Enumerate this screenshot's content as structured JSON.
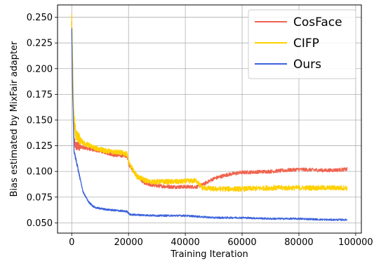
{
  "chart_data": {
    "type": "line",
    "title": "",
    "xlabel": "Training Iteration",
    "ylabel": "Bias estimated by MixFair adapter",
    "xlim": [
      -5000,
      102000
    ],
    "ylim": [
      0.04,
      0.262
    ],
    "xticks": [
      0,
      20000,
      40000,
      60000,
      80000,
      100000
    ],
    "xtick_labels": [
      "0",
      "20000",
      "40000",
      "60000",
      "80000",
      "100000"
    ],
    "yticks": [
      0.05,
      0.075,
      0.1,
      0.125,
      0.15,
      0.175,
      0.2,
      0.225,
      0.25
    ],
    "ytick_labels": [
      "0.050",
      "0.075",
      "0.100",
      "0.125",
      "0.150",
      "0.175",
      "0.200",
      "0.225",
      "0.250"
    ],
    "grid": true,
    "legend_position": "top-right",
    "draw_order": [
      "CosFace",
      "CIFP",
      "Ours"
    ],
    "series": [
      {
        "name": "CosFace",
        "color": "#f0624d",
        "noise": 0.0018,
        "points": [
          [
            0,
            0.245
          ],
          [
            300,
            0.2
          ],
          [
            800,
            0.13
          ],
          [
            1500,
            0.125
          ],
          [
            3000,
            0.124
          ],
          [
            6000,
            0.122
          ],
          [
            10000,
            0.12
          ],
          [
            15000,
            0.116
          ],
          [
            19500,
            0.115
          ],
          [
            20300,
            0.106
          ],
          [
            23000,
            0.095
          ],
          [
            26000,
            0.088
          ],
          [
            30000,
            0.086
          ],
          [
            35000,
            0.085
          ],
          [
            40000,
            0.085
          ],
          [
            44000,
            0.085
          ],
          [
            46000,
            0.087
          ],
          [
            50000,
            0.093
          ],
          [
            55000,
            0.097
          ],
          [
            60000,
            0.099
          ],
          [
            70000,
            0.1
          ],
          [
            80000,
            0.102
          ],
          [
            90000,
            0.101
          ],
          [
            97000,
            0.102
          ]
        ]
      },
      {
        "name": "CIFP",
        "color": "#ffd000",
        "noise": 0.0025,
        "points": [
          [
            0,
            0.252
          ],
          [
            300,
            0.21
          ],
          [
            700,
            0.155
          ],
          [
            1500,
            0.135
          ],
          [
            4000,
            0.128
          ],
          [
            8000,
            0.123
          ],
          [
            12000,
            0.12
          ],
          [
            16000,
            0.119
          ],
          [
            19500,
            0.117
          ],
          [
            20300,
            0.107
          ],
          [
            23000,
            0.095
          ],
          [
            27000,
            0.09
          ],
          [
            32000,
            0.09
          ],
          [
            38000,
            0.09
          ],
          [
            44000,
            0.091
          ],
          [
            46000,
            0.084
          ],
          [
            50000,
            0.083
          ],
          [
            60000,
            0.083
          ],
          [
            70000,
            0.084
          ],
          [
            80000,
            0.084
          ],
          [
            90000,
            0.084
          ],
          [
            97000,
            0.084
          ]
        ]
      },
      {
        "name": "Ours",
        "color": "#3d63db",
        "noise": 0.0009,
        "points": [
          [
            0,
            0.238
          ],
          [
            300,
            0.18
          ],
          [
            800,
            0.12
          ],
          [
            2000,
            0.105
          ],
          [
            4000,
            0.08
          ],
          [
            6000,
            0.07
          ],
          [
            8000,
            0.065
          ],
          [
            12000,
            0.063
          ],
          [
            19500,
            0.061
          ],
          [
            20500,
            0.058
          ],
          [
            30000,
            0.057
          ],
          [
            40000,
            0.057
          ],
          [
            50000,
            0.055
          ],
          [
            60000,
            0.055
          ],
          [
            70000,
            0.054
          ],
          [
            80000,
            0.054
          ],
          [
            90000,
            0.053
          ],
          [
            97000,
            0.053
          ]
        ]
      }
    ]
  }
}
